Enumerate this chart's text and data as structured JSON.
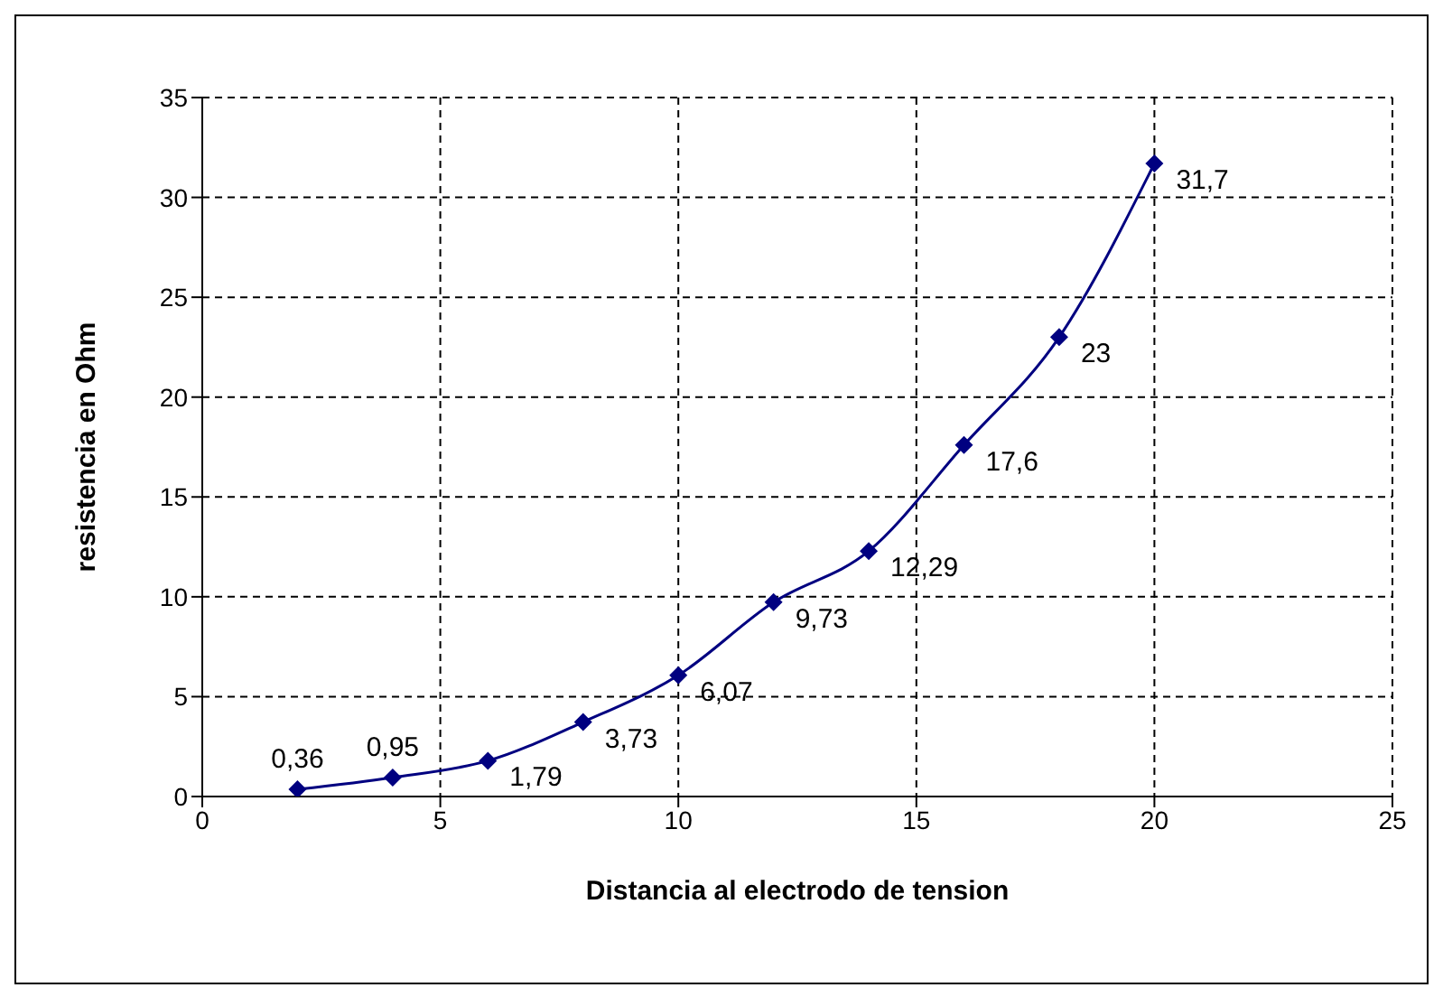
{
  "chart_data": {
    "type": "line",
    "xlabel": "Distancia al electrodo de tension",
    "ylabel": "resistencia en  Ohm",
    "x": [
      2,
      4,
      6,
      8,
      10,
      12,
      14,
      16,
      18,
      20
    ],
    "series": [
      {
        "color": "#000080",
        "values": [
          0.36,
          0.95,
          1.79,
          3.73,
          6.07,
          9.73,
          12.29,
          17.6,
          23,
          31.7
        ],
        "value_labels": [
          "0,36",
          "0,95",
          "1,79",
          "3,73",
          "6,07",
          "9,73",
          "12,29",
          "17,6",
          "23",
          "31,7"
        ]
      }
    ],
    "xlim": [
      0,
      25
    ],
    "xticks": [
      0,
      5,
      10,
      15,
      20,
      25
    ],
    "ylim": [
      0,
      35
    ],
    "yticks": [
      0,
      5,
      10,
      15,
      20,
      25,
      30,
      35
    ],
    "grid": true,
    "marker": "diamond",
    "line_style": "solid"
  }
}
